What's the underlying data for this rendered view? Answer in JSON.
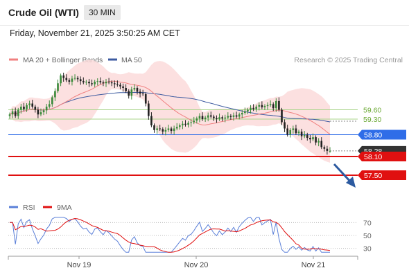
{
  "header": {
    "title": "Crude Oil (WTI)",
    "timeframe": "30 MIN"
  },
  "datetime": "Friday, November 21, 2025 3:50:25 AM CET",
  "legend": {
    "ma20": "MA 20 + Bollinger Bands",
    "ma50": "MA 50",
    "credit": "Research © 2025 Trading Central"
  },
  "rsi_legend": {
    "rsi": "RSI",
    "ma9": "9MA"
  },
  "colors": {
    "up": "#3a8a3a",
    "down": "#222222",
    "ma20": "#f08080",
    "ma50": "#3c5aa0",
    "band": "#fbdada",
    "support": "#e01010",
    "pivot": "#2f6de8",
    "resistance": "#a9d48a",
    "current": "#333333",
    "rsi": "#5a7fd8",
    "ma9": "#e01010",
    "arrow": "#2c5aa0"
  },
  "chart_data": [
    {
      "type": "candlestick",
      "x_labels": [
        "Nov 19",
        "Nov 20",
        "Nov 21"
      ],
      "ylim": [
        57.3,
        60.9
      ],
      "levels": [
        {
          "value": 59.6,
          "label": "59.60",
          "kind": "resistance"
        },
        {
          "value": 59.3,
          "label": "59.30",
          "kind": "resistance"
        },
        {
          "value": 58.8,
          "label": "58.80",
          "kind": "pivot"
        },
        {
          "value": 58.28,
          "label": "58.28",
          "kind": "current"
        },
        {
          "value": 58.1,
          "label": "58.10",
          "kind": "support"
        },
        {
          "value": 57.5,
          "label": "57.50",
          "kind": "support"
        }
      ],
      "close": [
        59.45,
        59.55,
        59.4,
        59.6,
        59.7,
        59.62,
        59.75,
        59.8,
        59.7,
        59.6,
        59.45,
        59.52,
        59.58,
        59.7,
        59.78,
        60.0,
        60.2,
        60.45,
        60.7,
        60.62,
        60.55,
        60.5,
        60.6,
        60.62,
        60.58,
        60.52,
        60.48,
        60.5,
        60.45,
        60.42,
        60.5,
        60.52,
        60.48,
        60.45,
        60.5,
        60.48,
        60.45,
        60.42,
        60.4,
        60.35,
        60.3,
        60.2,
        60.05,
        60.25,
        60.3,
        60.18,
        60.12,
        60.1,
        59.8,
        59.4,
        59.1,
        58.95,
        59.0,
        58.98,
        58.9,
        58.95,
        59.0,
        58.92,
        59.0,
        59.05,
        59.1,
        59.15,
        59.12,
        59.18,
        59.2,
        59.25,
        59.32,
        59.4,
        59.3,
        59.35,
        59.42,
        59.38,
        59.33,
        59.3,
        59.36,
        59.32,
        59.35,
        59.4,
        59.37,
        59.42,
        59.38,
        59.45,
        59.5,
        59.55,
        59.6,
        59.66,
        59.62,
        59.7,
        59.75,
        59.68,
        59.72,
        59.75,
        59.78,
        59.65,
        59.88,
        59.6,
        59.2,
        59.0,
        58.8,
        58.95,
        59.0,
        58.85,
        58.9,
        58.75,
        58.8,
        58.7,
        58.65,
        58.72,
        58.55,
        58.6,
        58.4,
        58.35,
        58.28,
        58.28
      ],
      "rsi": {
        "ylim": [
          20,
          80
        ],
        "ticks": [
          70,
          50,
          30
        ]
      }
    }
  ]
}
